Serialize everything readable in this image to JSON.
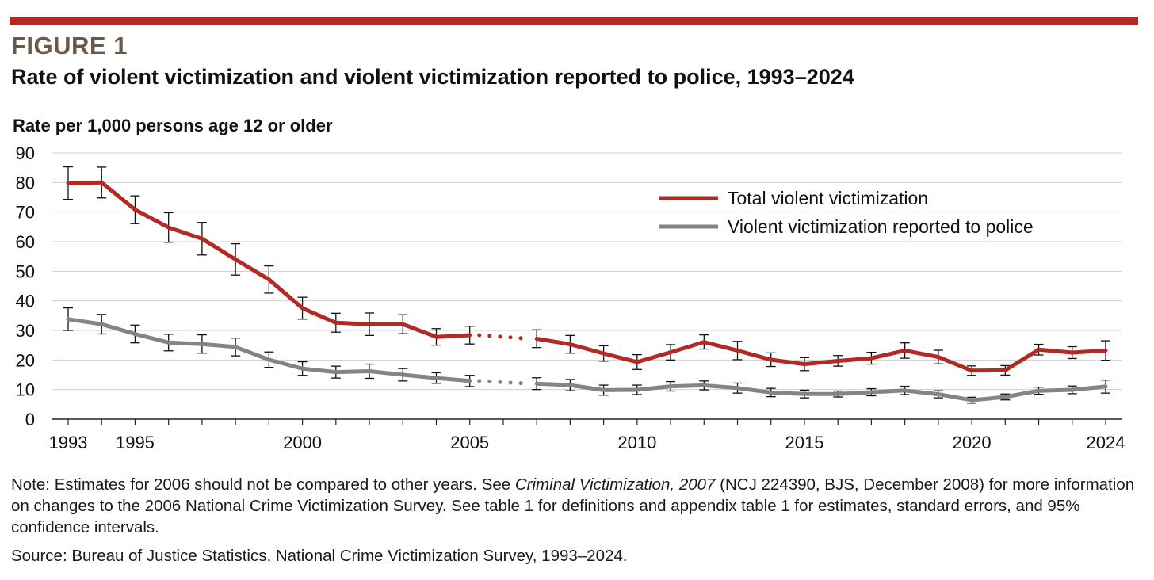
{
  "header": {
    "figure_label": "FIGURE 1",
    "title": "Rate of violent victimization and violent victimization reported to police, 1993–2024"
  },
  "chart_data": {
    "type": "line",
    "ylabel": "Rate per 1,000 persons age 12 or older",
    "ylim": [
      0,
      90
    ],
    "yticks": [
      0,
      10,
      20,
      30,
      40,
      50,
      60,
      70,
      80,
      90
    ],
    "xlim": [
      1993,
      2024
    ],
    "xticks": [
      1993,
      1995,
      2000,
      2005,
      2010,
      2015,
      2020,
      2024
    ],
    "grid": true,
    "legend_position": "top-right",
    "break_year": 2006,
    "series": [
      {
        "name": "Total violent victimization",
        "color": "#b22a23",
        "x": [
          1993,
          1994,
          1995,
          1996,
          1997,
          1998,
          1999,
          2000,
          2001,
          2002,
          2003,
          2004,
          2005,
          2007,
          2008,
          2009,
          2010,
          2011,
          2012,
          2013,
          2014,
          2015,
          2016,
          2017,
          2018,
          2019,
          2020,
          2021,
          2022,
          2023,
          2024
        ],
        "values": [
          79.8,
          80.0,
          70.8,
          64.8,
          61.0,
          54.0,
          47.2,
          37.5,
          32.6,
          32.1,
          32.1,
          27.8,
          28.4,
          27.2,
          25.3,
          22.2,
          19.3,
          22.6,
          26.1,
          23.2,
          20.1,
          18.6,
          19.7,
          20.6,
          23.2,
          21.0,
          16.4,
          16.5,
          23.5,
          22.5,
          23.2
        ],
        "error": [
          5.5,
          5.2,
          4.7,
          5.0,
          5.5,
          5.3,
          4.6,
          3.7,
          3.2,
          3.8,
          3.2,
          2.8,
          3.0,
          3.0,
          3.0,
          2.6,
          2.5,
          2.6,
          2.4,
          3.1,
          2.3,
          2.2,
          1.8,
          2.0,
          2.6,
          2.3,
          1.6,
          1.6,
          1.8,
          2.0,
          3.3
        ]
      },
      {
        "name": "Violent victimization reported to police",
        "color": "#848484",
        "x": [
          1993,
          1994,
          1995,
          1996,
          1997,
          1998,
          1999,
          2000,
          2001,
          2002,
          2003,
          2004,
          2005,
          2007,
          2008,
          2009,
          2010,
          2011,
          2012,
          2013,
          2014,
          2015,
          2016,
          2017,
          2018,
          2019,
          2020,
          2021,
          2022,
          2023,
          2024
        ],
        "values": [
          33.8,
          32.1,
          28.8,
          25.9,
          25.4,
          24.4,
          20.1,
          17.1,
          15.9,
          16.2,
          15.0,
          13.9,
          12.9,
          12.0,
          11.5,
          9.8,
          9.9,
          11.1,
          11.4,
          10.5,
          9.0,
          8.5,
          8.5,
          9.1,
          9.7,
          8.4,
          6.4,
          7.5,
          9.6,
          9.9,
          11.0
        ],
        "error": [
          3.8,
          3.3,
          3.0,
          2.8,
          3.1,
          3.0,
          2.6,
          2.3,
          2.0,
          2.4,
          2.1,
          1.8,
          1.9,
          2.0,
          1.9,
          1.7,
          1.6,
          1.6,
          1.5,
          1.7,
          1.4,
          1.3,
          1.0,
          1.2,
          1.4,
          1.2,
          1.0,
          1.0,
          1.2,
          1.3,
          2.2
        ]
      }
    ]
  },
  "note": {
    "prefix": "Note: Estimates for 2006 should not be compared to other years. See ",
    "italic": "Criminal Victimization, 2007",
    "suffix": " (NCJ 224390, BJS, December 2008) for more information on changes to the 2006 National Crime Victimization Survey. See table 1 for definitions and appendix table 1 for estimates, standard errors, and 95% confidence intervals."
  },
  "source": "Source: Bureau of Justice Statistics, National Crime Victimization Survey, 1993–2024."
}
